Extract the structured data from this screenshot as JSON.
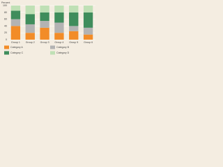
{
  "chart_data": {
    "type": "stacked_bar",
    "y_label": "Percent",
    "categories": [
      "Group 1",
      "Group 2",
      "Group 3",
      "Group 4",
      "Group 5",
      "Group 6"
    ],
    "series": [
      {
        "name": "Category A",
        "color": "#f28c28",
        "values": [
          40,
          20,
          35,
          20,
          25,
          15
        ]
      },
      {
        "name": "Category B",
        "color": "#b3b3b3",
        "values": [
          20,
          25,
          20,
          30,
          15,
          20
        ]
      },
      {
        "name": "Category C",
        "color": "#3f8d5c",
        "values": [
          25,
          30,
          25,
          30,
          40,
          45
        ]
      },
      {
        "name": "Category D",
        "color": "#bfe0b5",
        "values": [
          15,
          25,
          20,
          20,
          20,
          20
        ]
      }
    ],
    "ylim": [
      0,
      100
    ],
    "yticks": [
      0,
      20,
      40,
      60,
      80,
      100
    ],
    "grid": true
  }
}
